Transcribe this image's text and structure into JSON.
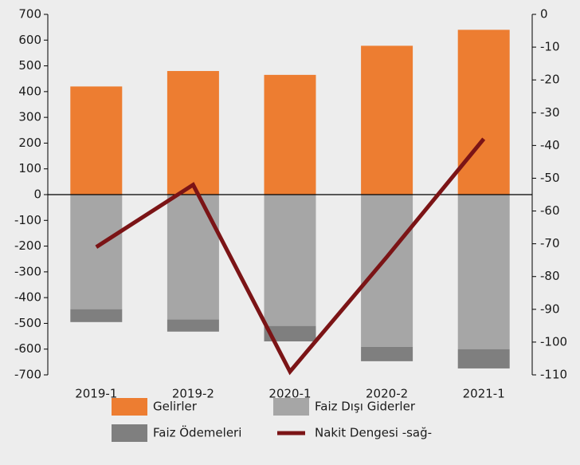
{
  "chart_data": {
    "type": "bar",
    "categories": [
      "2019-1",
      "2019-2",
      "2020-1",
      "2020-2",
      "2021-1"
    ],
    "series": [
      {
        "name": "Gelirler",
        "color": "#ed7d31",
        "values": [
          420,
          480,
          465,
          578,
          640
        ]
      },
      {
        "name": "Faiz Dışı Giderler",
        "color": "#a6a6a6",
        "values": [
          -445,
          -485,
          -510,
          -591,
          -600
        ]
      },
      {
        "name": "Faiz Ödemeleri",
        "color": "#7f7f7f",
        "values": [
          -50,
          -47,
          -60,
          -56,
          -75
        ]
      },
      {
        "name": "Nakit Dengesi -sağ-",
        "type": "line",
        "axis": "y2",
        "color": "#7b1416",
        "values": [
          -71,
          -52,
          -109,
          -74,
          -38
        ]
      }
    ],
    "ylim": [
      -700,
      700
    ],
    "yticks": [
      700,
      600,
      500,
      400,
      300,
      200,
      100,
      0,
      -100,
      -200,
      -300,
      -400,
      -500,
      -600,
      -700
    ],
    "y2lim": [
      -110,
      0
    ],
    "y2ticks": [
      0,
      -10,
      -20,
      -30,
      -40,
      -50,
      -60,
      -70,
      -80,
      -90,
      -100,
      -110
    ]
  }
}
